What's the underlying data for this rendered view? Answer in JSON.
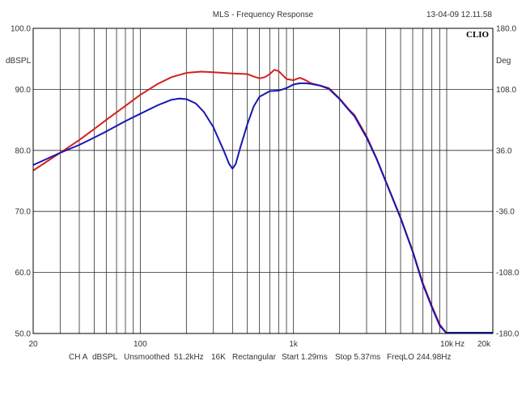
{
  "chart_data": {
    "type": "line",
    "title": "MLS - Frequency Response",
    "timestamp": "13-04-09 12.11.58",
    "logo": "CLIO",
    "x_scale": "log",
    "xlim": [
      20,
      20000
    ],
    "ylim": [
      50,
      100
    ],
    "y2lim": [
      -180,
      180
    ],
    "ylabel": "dBSPL",
    "y2label": "Deg",
    "xunit_label": "Hz",
    "grid": true,
    "x_tick_labels": [
      {
        "value": 20,
        "label": "20"
      },
      {
        "value": 100,
        "label": "100"
      },
      {
        "value": 1000,
        "label": "1k"
      },
      {
        "value": 10000,
        "label": "10k"
      },
      {
        "value": 20000,
        "label": "20k"
      }
    ],
    "y_tick_labels": [
      {
        "value": 100,
        "label": "100.0"
      },
      {
        "value": 90,
        "label": "90.0"
      },
      {
        "value": 80,
        "label": "80.0"
      },
      {
        "value": 70,
        "label": "70.0"
      },
      {
        "value": 60,
        "label": "60.0"
      },
      {
        "value": 50,
        "label": "50.0"
      }
    ],
    "y2_tick_labels": [
      {
        "value": 180,
        "label": "180.0"
      },
      {
        "value": 108,
        "label": "108.0"
      },
      {
        "value": 36,
        "label": "36.0"
      },
      {
        "value": -36,
        "label": "-36.0"
      },
      {
        "value": -108,
        "label": "-108.0"
      },
      {
        "value": -180,
        "label": "-180.0"
      }
    ],
    "series": [
      {
        "color": "#d42020",
        "x": [
          20,
          25,
          30,
          40,
          50,
          60,
          80,
          100,
          130,
          160,
          200,
          250,
          300,
          400,
          500,
          550,
          600,
          650,
          700,
          750,
          800,
          900,
          1000,
          1100,
          1200,
          1300,
          1500,
          1700,
          2000,
          2300,
          2500,
          3000,
          3500,
          4000,
          5000,
          6000,
          7000,
          8000,
          9000,
          10000
        ],
        "y": [
          76.7,
          78.3,
          79.6,
          81.7,
          83.5,
          85.0,
          87.3,
          89.1,
          90.9,
          92.0,
          92.7,
          92.9,
          92.8,
          92.6,
          92.5,
          92.1,
          91.8,
          92.0,
          92.5,
          93.2,
          93.0,
          91.7,
          91.5,
          91.9,
          91.5,
          91.0,
          90.6,
          90.2,
          88.5,
          86.7,
          85.8,
          82.3,
          78.6,
          75.0,
          69.0,
          63.5,
          58.2,
          54.5,
          51.5,
          50.0
        ]
      },
      {
        "color": "#1818b0",
        "x": [
          20,
          25,
          30,
          40,
          50,
          60,
          80,
          100,
          130,
          160,
          180,
          200,
          230,
          260,
          300,
          350,
          380,
          400,
          420,
          450,
          500,
          550,
          600,
          700,
          800,
          900,
          1000,
          1100,
          1200,
          1300,
          1500,
          1700,
          2000,
          2300,
          2500,
          3000,
          3500,
          4000,
          5000,
          6000,
          7000,
          8000,
          9000,
          10000
        ],
        "y": [
          77.6,
          78.7,
          79.6,
          80.9,
          82.1,
          83.1,
          84.8,
          86.0,
          87.4,
          88.3,
          88.5,
          88.4,
          87.7,
          86.3,
          83.8,
          80.0,
          77.8,
          77.0,
          77.8,
          80.5,
          84.3,
          87.2,
          88.8,
          89.7,
          89.8,
          90.2,
          90.8,
          91.0,
          91.0,
          90.9,
          90.6,
          90.1,
          88.4,
          86.6,
          85.6,
          82.1,
          78.5,
          74.9,
          68.9,
          63.4,
          58.0,
          54.3,
          51.3,
          50.0
        ]
      }
    ],
    "footer": {
      "channel": "CH A",
      "unit": "dBSPL",
      "smoothing": "Unsmoothed",
      "sample_rate": "51.2kHz",
      "size": "16K",
      "window": "Rectangular",
      "start": "Start 1.29ms",
      "stop": "Stop 5.37ms",
      "freqlo": "FreqLO 244.98Hz"
    }
  }
}
